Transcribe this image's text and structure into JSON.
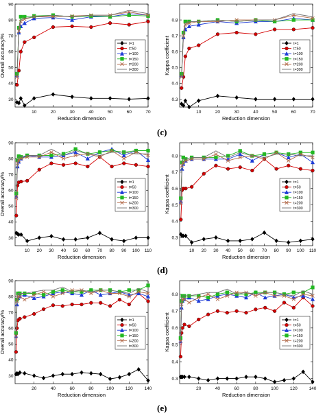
{
  "panel_labels": [
    "(c)",
    "(d)",
    "(e)"
  ],
  "legend_markers": {
    "t=1": "diamond",
    "t=50": "circle",
    "t=100": "triangle",
    "t=150": "square",
    "t=200": "x",
    "t=300": "none"
  },
  "chart_data": [
    {
      "type": "line",
      "xlabel": "Reduction dimension",
      "ylabel": "Overall accuracy/%",
      "xlim": [
        0,
        70
      ],
      "ylim": [
        25,
        90
      ],
      "xticks": [
        10,
        20,
        30,
        40,
        50,
        60,
        70
      ],
      "yticks": [
        30,
        40,
        50,
        60,
        70,
        80,
        90
      ],
      "tick_labels_x": [
        "10",
        "20",
        "30",
        "40",
        "50",
        "60",
        "70"
      ],
      "tick_labels_y": [
        "30",
        "40",
        "50",
        "60",
        "70",
        "80",
        "90"
      ],
      "grid": false,
      "legend": "bottom-right",
      "x": [
        1,
        2,
        3,
        5,
        10,
        20,
        30,
        40,
        50,
        60,
        70
      ],
      "series": [
        {
          "name": "t=1",
          "color": "#000000",
          "values": [
            28,
            27.5,
            30.5,
            26,
            30.5,
            33,
            31.5,
            30.5,
            30.5,
            30,
            30.5
          ]
        },
        {
          "name": "t=50",
          "color": "#d40000",
          "values": [
            39,
            48,
            60,
            66,
            69,
            75.5,
            76,
            75.5,
            78,
            77,
            79
          ]
        },
        {
          "name": "t=100",
          "color": "#1e3cd6",
          "values": [
            45,
            72,
            76,
            78,
            81,
            81.5,
            80,
            82,
            82,
            84,
            83
          ]
        },
        {
          "name": "t=150",
          "color": "#22b822",
          "values": [
            46,
            75,
            82,
            82,
            82.5,
            83,
            82,
            82.5,
            82,
            83,
            82.5
          ]
        },
        {
          "name": "t=200",
          "color": "#b26a4a",
          "values": [
            44,
            73,
            79,
            80.5,
            82,
            82,
            82.5,
            83,
            83,
            85,
            83
          ]
        },
        {
          "name": "t=300",
          "color": "#707070",
          "values": [
            45,
            75,
            80,
            81,
            82,
            83,
            82,
            83,
            83,
            86,
            84
          ]
        }
      ]
    },
    {
      "type": "line",
      "xlabel": "Reduction dimension",
      "ylabel": "Kappa coefficient",
      "xlim": [
        0,
        70
      ],
      "ylim": [
        0.25,
        0.9
      ],
      "xticks": [
        10,
        20,
        30,
        40,
        50,
        60,
        70
      ],
      "yticks": [
        0.3,
        0.4,
        0.5,
        0.6,
        0.7,
        0.8
      ],
      "tick_labels_x": [
        "10",
        "20",
        "30",
        "40",
        "50",
        "60",
        "70"
      ],
      "tick_labels_y": [
        "0.3",
        "0.4",
        "0.5",
        "0.6",
        "0.7",
        "0.8"
      ],
      "grid": false,
      "legend": "bottom-right",
      "x": [
        1,
        2,
        3,
        5,
        10,
        20,
        30,
        40,
        50,
        60,
        70
      ],
      "series": [
        {
          "name": "t=1",
          "color": "#000000",
          "values": [
            0.27,
            0.26,
            0.29,
            0.25,
            0.29,
            0.32,
            0.31,
            0.3,
            0.3,
            0.3,
            0.3
          ]
        },
        {
          "name": "t=50",
          "color": "#d40000",
          "values": [
            0.37,
            0.44,
            0.57,
            0.62,
            0.64,
            0.71,
            0.72,
            0.71,
            0.74,
            0.74,
            0.75
          ]
        },
        {
          "name": "t=100",
          "color": "#1e3cd6",
          "values": [
            0.45,
            0.69,
            0.74,
            0.76,
            0.77,
            0.79,
            0.78,
            0.79,
            0.79,
            0.81,
            0.8
          ]
        },
        {
          "name": "t=150",
          "color": "#22b822",
          "values": [
            0.46,
            0.72,
            0.79,
            0.79,
            0.79,
            0.8,
            0.79,
            0.8,
            0.79,
            0.8,
            0.8
          ]
        },
        {
          "name": "t=200",
          "color": "#b26a4a",
          "values": [
            0.44,
            0.7,
            0.77,
            0.78,
            0.79,
            0.79,
            0.8,
            0.8,
            0.8,
            0.83,
            0.81
          ]
        },
        {
          "name": "t=300",
          "color": "#707070",
          "values": [
            0.45,
            0.72,
            0.78,
            0.79,
            0.79,
            0.8,
            0.79,
            0.8,
            0.8,
            0.84,
            0.82
          ]
        }
      ]
    },
    {
      "type": "line",
      "xlabel": "Reduction dimension",
      "ylabel": "Overall accuracy/%",
      "xlim": [
        0,
        110
      ],
      "ylim": [
        25,
        90
      ],
      "xticks": [
        10,
        20,
        30,
        40,
        50,
        60,
        70,
        80,
        90,
        100,
        110
      ],
      "yticks": [
        30,
        40,
        50,
        60,
        70,
        80,
        90
      ],
      "tick_labels_x": [
        "10",
        "20",
        "30",
        "40",
        "50",
        "60",
        "70",
        "80",
        "90",
        "100",
        "110"
      ],
      "tick_labels_y": [
        "30",
        "40",
        "50",
        "60",
        "70",
        "80",
        "90"
      ],
      "grid": false,
      "legend": "bottom-right",
      "x": [
        1,
        2,
        3,
        5,
        10,
        20,
        30,
        40,
        50,
        60,
        70,
        80,
        90,
        100,
        110
      ],
      "series": [
        {
          "name": "t=1",
          "color": "#000000",
          "values": [
            33,
            32.5,
            32,
            32,
            28,
            30,
            31,
            29,
            29,
            30,
            33,
            29,
            28,
            30,
            30
          ]
        },
        {
          "name": "t=50",
          "color": "#d40000",
          "values": [
            44,
            63,
            65,
            65.5,
            66,
            73,
            77,
            76,
            77,
            75,
            81,
            75,
            77,
            76,
            75
          ]
        },
        {
          "name": "t=100",
          "color": "#1e3cd6",
          "values": [
            56,
            75,
            78,
            80,
            82,
            81,
            81,
            82,
            84,
            80,
            84,
            86,
            82,
            85,
            79
          ]
        },
        {
          "name": "t=150",
          "color": "#22b822",
          "values": [
            58,
            79,
            81.5,
            81,
            82,
            82,
            82,
            83,
            86,
            83,
            84,
            85,
            84,
            85,
            85
          ]
        },
        {
          "name": "t=200",
          "color": "#b26a4a",
          "values": [
            55,
            77,
            79,
            80,
            81,
            81,
            84,
            80,
            82,
            83,
            81,
            85,
            80,
            84,
            82
          ]
        },
        {
          "name": "t=300",
          "color": "#707070",
          "values": [
            57,
            79,
            81,
            81,
            82,
            82,
            86,
            82,
            85,
            83,
            82,
            84,
            84,
            83,
            83
          ]
        }
      ]
    },
    {
      "type": "line",
      "xlabel": "Reduction dimension",
      "ylabel": "Kappa coefficient",
      "xlim": [
        0,
        110
      ],
      "ylim": [
        0.25,
        0.88
      ],
      "xticks": [
        10,
        20,
        30,
        40,
        50,
        60,
        70,
        80,
        90,
        100,
        110
      ],
      "yticks": [
        0.3,
        0.4,
        0.5,
        0.6,
        0.7,
        0.8
      ],
      "tick_labels_x": [
        "10",
        "20",
        "30",
        "40",
        "50",
        "60",
        "70",
        "80",
        "90",
        "100",
        "110"
      ],
      "tick_labels_y": [
        "0.3",
        "0.4",
        "0.5",
        "0.6",
        "0.7",
        "0.8"
      ],
      "grid": false,
      "legend": "bottom-right",
      "x": [
        1,
        2,
        3,
        5,
        10,
        20,
        30,
        40,
        50,
        60,
        70,
        80,
        90,
        100,
        110
      ],
      "series": [
        {
          "name": "t=1",
          "color": "#000000",
          "values": [
            0.32,
            0.31,
            0.31,
            0.31,
            0.27,
            0.29,
            0.3,
            0.28,
            0.28,
            0.29,
            0.33,
            0.28,
            0.27,
            0.28,
            0.29
          ]
        },
        {
          "name": "t=50",
          "color": "#d40000",
          "values": [
            0.41,
            0.59,
            0.6,
            0.6,
            0.61,
            0.69,
            0.74,
            0.72,
            0.73,
            0.71,
            0.78,
            0.72,
            0.74,
            0.72,
            0.71
          ]
        },
        {
          "name": "t=100",
          "color": "#1e3cd6",
          "values": [
            0.52,
            0.72,
            0.75,
            0.77,
            0.78,
            0.78,
            0.78,
            0.78,
            0.81,
            0.77,
            0.81,
            0.82,
            0.79,
            0.81,
            0.76
          ]
        },
        {
          "name": "t=150",
          "color": "#22b822",
          "values": [
            0.54,
            0.76,
            0.79,
            0.78,
            0.79,
            0.79,
            0.79,
            0.8,
            0.83,
            0.8,
            0.81,
            0.82,
            0.81,
            0.82,
            0.82
          ]
        },
        {
          "name": "t=200",
          "color": "#b26a4a",
          "values": [
            0.51,
            0.74,
            0.76,
            0.77,
            0.78,
            0.78,
            0.81,
            0.77,
            0.79,
            0.8,
            0.78,
            0.82,
            0.77,
            0.81,
            0.79
          ]
        },
        {
          "name": "t=300",
          "color": "#707070",
          "values": [
            0.53,
            0.76,
            0.78,
            0.78,
            0.79,
            0.79,
            0.83,
            0.79,
            0.82,
            0.8,
            0.79,
            0.81,
            0.81,
            0.8,
            0.8
          ]
        }
      ]
    },
    {
      "type": "line",
      "xlabel": "Reduction dimension",
      "ylabel": "Overall accuracy/%",
      "xlim": [
        0,
        140
      ],
      "ylim": [
        25,
        90
      ],
      "xticks": [
        20,
        40,
        60,
        80,
        100,
        120,
        140
      ],
      "yticks": [
        30,
        40,
        50,
        60,
        70,
        80,
        90
      ],
      "tick_labels_x": [
        "20",
        "40",
        "60",
        "80",
        "100",
        "120",
        "140"
      ],
      "tick_labels_y": [
        "30",
        "40",
        "50",
        "60",
        "70",
        "80",
        "90"
      ],
      "grid": false,
      "legend": "bottom-right",
      "x": [
        1,
        2,
        3,
        5,
        10,
        20,
        30,
        40,
        50,
        60,
        70,
        80,
        90,
        100,
        110,
        120,
        130,
        140
      ],
      "series": [
        {
          "name": "t=1",
          "color": "#000000",
          "values": [
            31,
            31.5,
            31,
            32,
            31.5,
            30,
            28.5,
            30,
            31,
            31,
            32,
            31.5,
            31,
            28,
            29,
            31,
            34,
            27
          ]
        },
        {
          "name": "t=50",
          "color": "#d40000",
          "values": [
            45,
            60,
            65,
            66,
            67,
            69,
            72,
            74.5,
            74,
            75,
            75,
            76,
            76,
            74,
            78,
            75,
            82,
            77
          ]
        },
        {
          "name": "t=100",
          "color": "#1e3cd6",
          "values": [
            55,
            75,
            79,
            80,
            81,
            79,
            80,
            82,
            83,
            82,
            81,
            84,
            81,
            82,
            83,
            81,
            82,
            80
          ]
        },
        {
          "name": "t=150",
          "color": "#22b822",
          "values": [
            57,
            78,
            82,
            82,
            82,
            82,
            81,
            83,
            84,
            83,
            83,
            84,
            84,
            84,
            83,
            84,
            84,
            87
          ]
        },
        {
          "name": "t=200",
          "color": "#b26a4a",
          "values": [
            55,
            77,
            80,
            80,
            78,
            81,
            83,
            80,
            82,
            84,
            84,
            82,
            84,
            82,
            82,
            80,
            83,
            82
          ]
        },
        {
          "name": "t=300",
          "color": "#707070",
          "values": [
            56,
            79,
            82,
            82,
            82,
            83,
            84,
            84,
            86,
            83,
            84,
            83,
            84,
            84,
            83,
            82,
            85,
            83
          ]
        }
      ]
    },
    {
      "type": "line",
      "xlabel": "Reduction dimension",
      "ylabel": "Kappa coefficient",
      "xlim": [
        0,
        140
      ],
      "ylim": [
        0.27,
        0.88
      ],
      "xticks": [
        20,
        40,
        60,
        80,
        100,
        120,
        140
      ],
      "yticks": [
        0.3,
        0.4,
        0.5,
        0.6,
        0.7,
        0.8
      ],
      "tick_labels_x": [
        "20",
        "40",
        "60",
        "80",
        "100",
        "120",
        "140"
      ],
      "tick_labels_y": [
        "0.3",
        "0.4",
        "0.5",
        "0.6",
        "0.7",
        "0.8"
      ],
      "grid": false,
      "legend": "bottom-right",
      "x": [
        1,
        2,
        3,
        5,
        10,
        20,
        30,
        40,
        50,
        60,
        70,
        80,
        90,
        100,
        110,
        120,
        130,
        140
      ],
      "series": [
        {
          "name": "t=1",
          "color": "#000000",
          "values": [
            0.31,
            0.31,
            0.31,
            0.31,
            0.31,
            0.3,
            0.29,
            0.3,
            0.3,
            0.3,
            0.31,
            0.31,
            0.3,
            0.28,
            0.29,
            0.3,
            0.34,
            0.28
          ]
        },
        {
          "name": "t=50",
          "color": "#d40000",
          "values": [
            0.43,
            0.57,
            0.6,
            0.62,
            0.61,
            0.65,
            0.68,
            0.7,
            0.69,
            0.7,
            0.69,
            0.71,
            0.72,
            0.7,
            0.75,
            0.72,
            0.78,
            0.73
          ]
        },
        {
          "name": "t=100",
          "color": "#1e3cd6",
          "values": [
            0.52,
            0.72,
            0.76,
            0.77,
            0.78,
            0.76,
            0.77,
            0.79,
            0.8,
            0.79,
            0.78,
            0.81,
            0.78,
            0.79,
            0.8,
            0.78,
            0.79,
            0.77
          ]
        },
        {
          "name": "t=150",
          "color": "#22b822",
          "values": [
            0.54,
            0.76,
            0.79,
            0.79,
            0.79,
            0.79,
            0.78,
            0.8,
            0.81,
            0.8,
            0.8,
            0.81,
            0.81,
            0.81,
            0.8,
            0.81,
            0.81,
            0.84
          ]
        },
        {
          "name": "t=200",
          "color": "#b26a4a",
          "values": [
            0.52,
            0.74,
            0.77,
            0.77,
            0.75,
            0.78,
            0.8,
            0.77,
            0.79,
            0.81,
            0.81,
            0.79,
            0.81,
            0.79,
            0.79,
            0.77,
            0.8,
            0.79
          ]
        },
        {
          "name": "t=300",
          "color": "#707070",
          "values": [
            0.53,
            0.77,
            0.79,
            0.79,
            0.79,
            0.8,
            0.81,
            0.81,
            0.83,
            0.8,
            0.81,
            0.8,
            0.81,
            0.81,
            0.8,
            0.79,
            0.82,
            0.8
          ]
        }
      ]
    }
  ]
}
